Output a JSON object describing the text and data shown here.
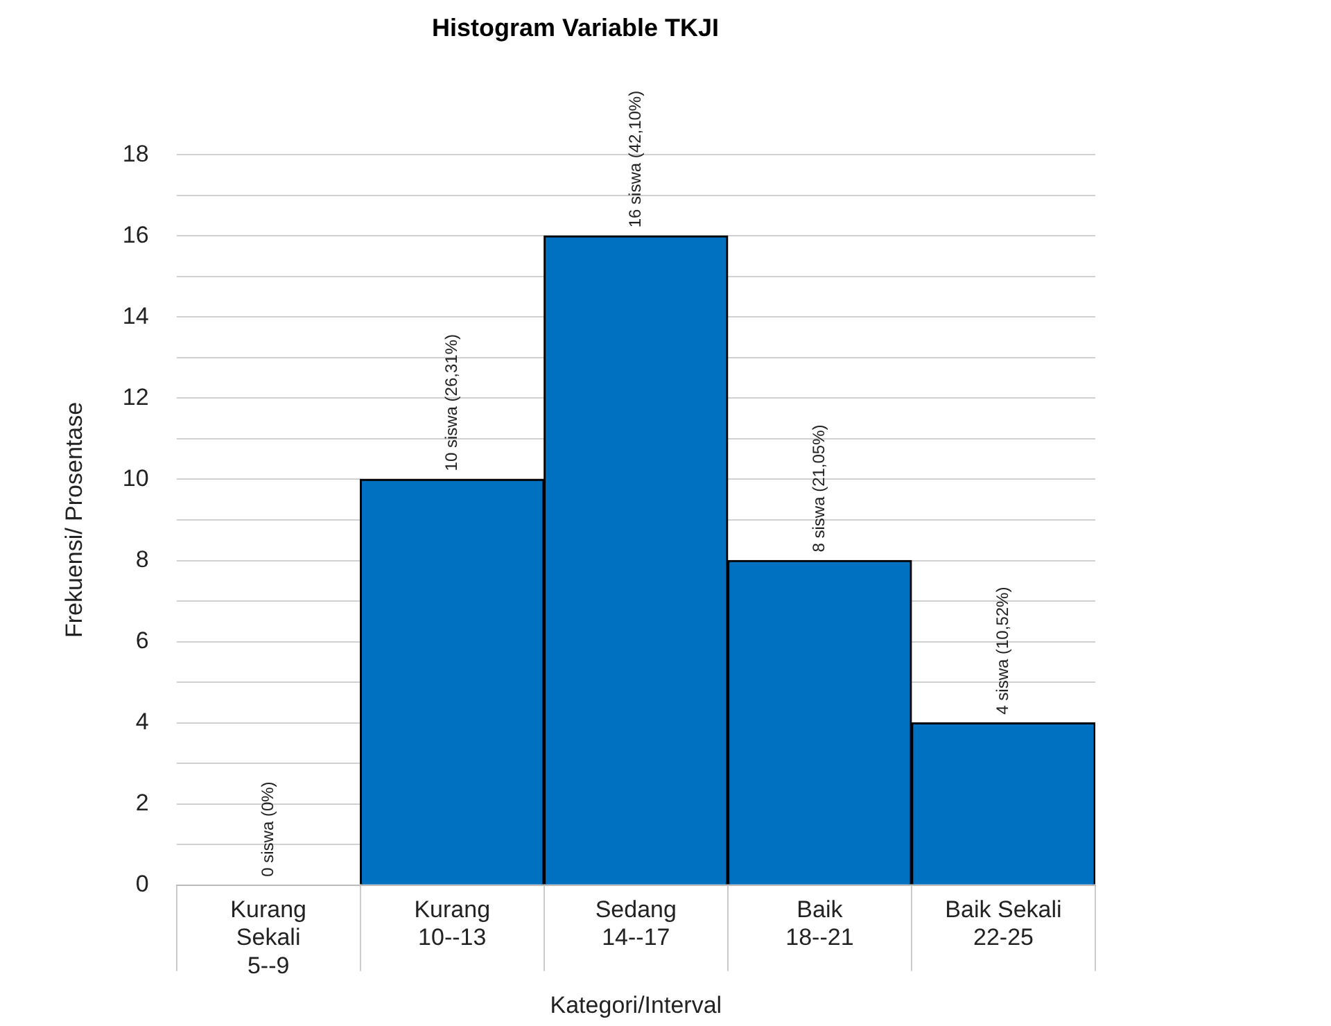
{
  "chart_data": {
    "type": "bar",
    "title": "Histogram Variable TKJI",
    "xlabel": "Kategori/Interval",
    "ylabel": "Frekuensi/ Prosentase",
    "categories": [
      "Kurang\nSekali\n5--9",
      "Kurang\n10--13",
      "Sedang\n14--17",
      "Baik\n18--21",
      "Baik Sekali\n22-25"
    ],
    "values": [
      0,
      10,
      16,
      8,
      4
    ],
    "color": "#0070c0",
    "value_labels": [
      "0 siswa (0%)",
      "10 siswa (26,31%)",
      "16 siswa (42,10%)",
      "8 siswa (21,05%)",
      "4 siswa (10,52%)"
    ],
    "ylim": [
      0,
      18
    ],
    "yticks": [
      0,
      {
        "value": 1,
        "label": null
      },
      2,
      {
        "value": 3,
        "label": null
      },
      4,
      {
        "value": 5,
        "label": null
      },
      6,
      {
        "value": 7,
        "label": null
      },
      8,
      {
        "value": 9,
        "label": null
      },
      10,
      {
        "value": 11,
        "label": null
      },
      12,
      {
        "value": 13,
        "label": null
      },
      14,
      {
        "value": 15,
        "label": null
      },
      16,
      {
        "value": 17,
        "label": null
      },
      18
    ],
    "grid": "y"
  }
}
